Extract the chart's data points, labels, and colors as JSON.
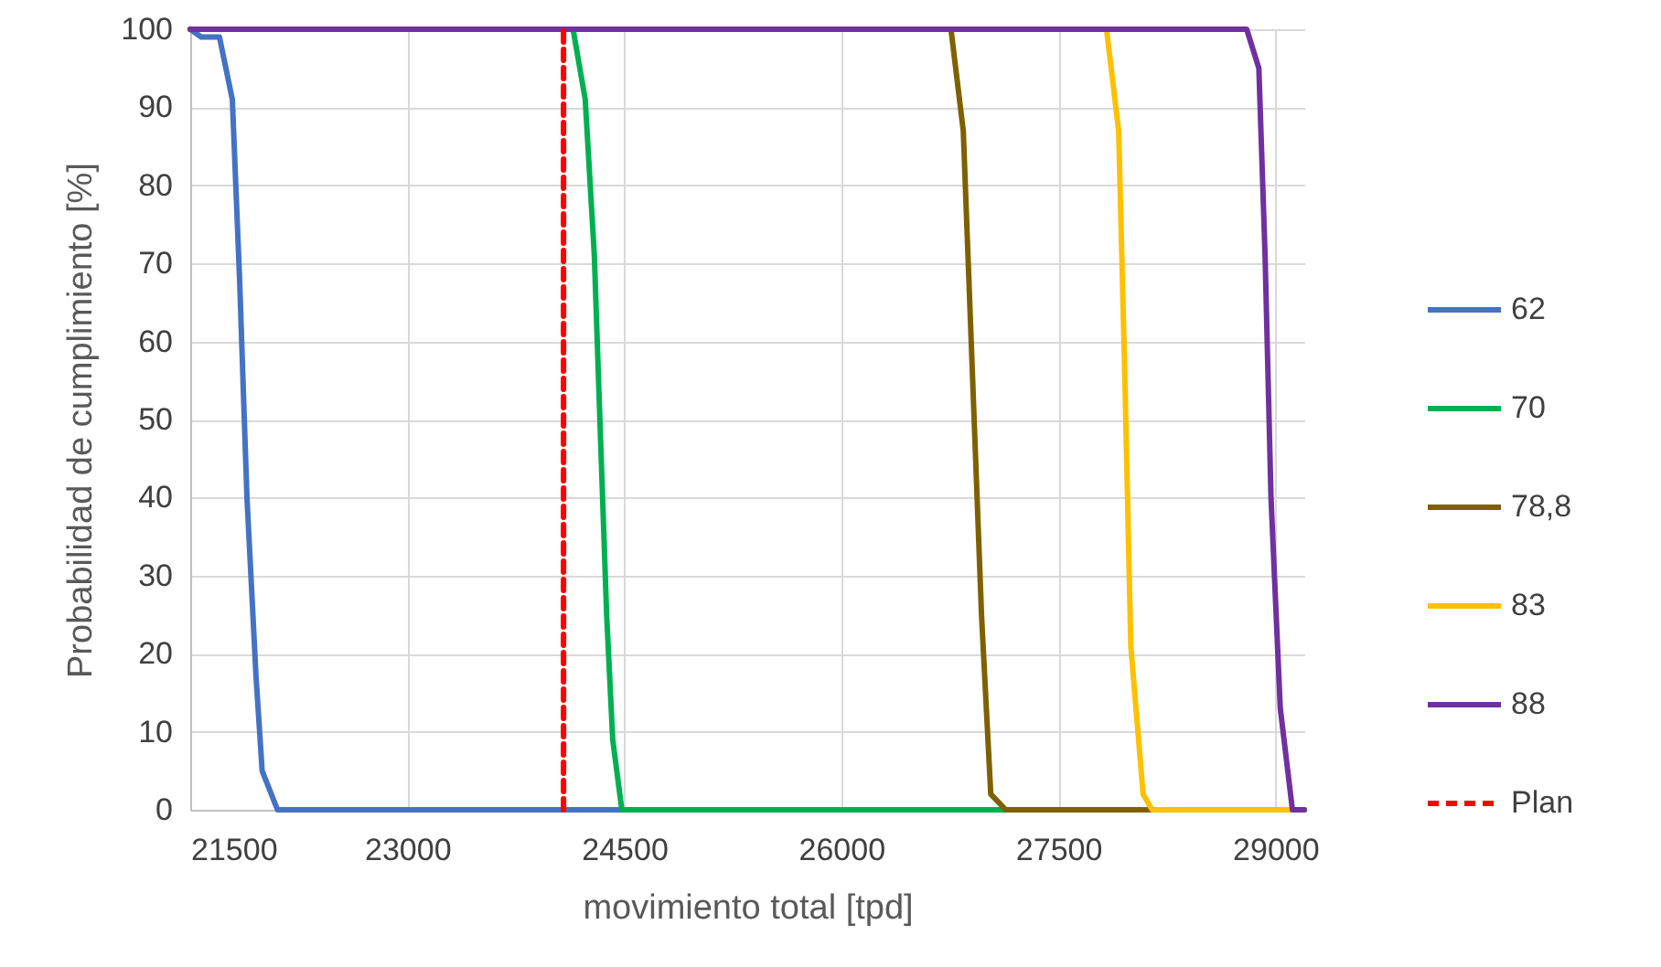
{
  "chart_data": {
    "type": "line",
    "xlabel": "movimiento total [tpd]",
    "ylabel": "Probabilidad de cumplimiento [%]",
    "xlim": [
      21500,
      29200
    ],
    "xticks": [
      21500,
      23000,
      24500,
      26000,
      27500,
      29000
    ],
    "ylim": [
      0,
      100
    ],
    "yticks": [
      0,
      10,
      20,
      30,
      40,
      50,
      60,
      70,
      80,
      90,
      100
    ],
    "grid": true,
    "legend": "right",
    "marker": "none",
    "series": [
      {
        "name": "62",
        "color": "#4472c4",
        "x": [
          21500,
          21576,
          21702,
          21791,
          21841,
          21892,
          21955,
          21997,
          22103,
          29200
        ],
        "values": [
          100,
          99,
          99,
          91,
          68,
          40,
          17,
          5,
          0,
          0
        ]
      },
      {
        "name": "70",
        "color": "#00b050",
        "x": [
          21500,
          24146,
          24230,
          24293,
          24335,
          24378,
          24420,
          24483,
          29200
        ],
        "values": [
          100,
          100,
          91,
          71,
          48,
          25,
          9,
          0,
          0
        ]
      },
      {
        "name": "78,8",
        "color": "#7f6000",
        "x": [
          21500,
          26758,
          26843,
          26906,
          26969,
          27033,
          27137,
          29200
        ],
        "values": [
          100,
          100,
          87,
          56,
          25,
          2,
          0,
          0
        ]
      },
      {
        "name": "83",
        "color": "#ffc000",
        "x": [
          27833,
          27917,
          27959,
          28001,
          28086,
          28149,
          29200
        ],
        "values": [
          100,
          87,
          56,
          21,
          2,
          0,
          0
        ]
      },
      {
        "name": "88",
        "color": "#7030a0",
        "x": [
          21500,
          28802,
          28886,
          28929,
          28970,
          29034,
          29118,
          29200
        ],
        "values": [
          100,
          100,
          95,
          71,
          40,
          13,
          0,
          0
        ]
      },
      {
        "name": "Plan",
        "color": "#ff0000",
        "line_style": "dashed",
        "x": [
          24080,
          24080
        ],
        "values": [
          0,
          100
        ]
      }
    ]
  }
}
